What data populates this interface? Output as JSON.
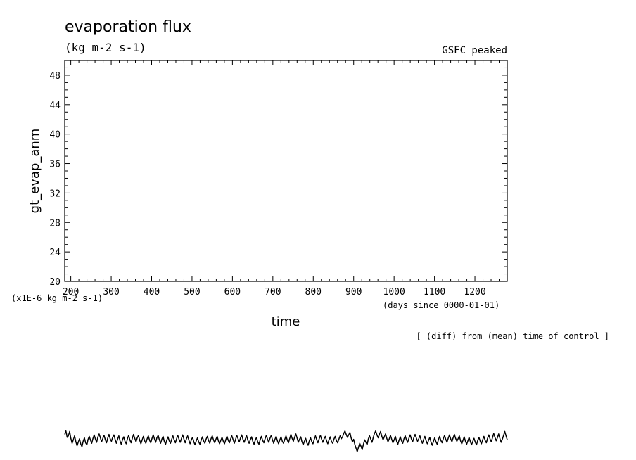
{
  "chart_data": {
    "type": "line",
    "title": "evaporation flux",
    "units": "(kg m-2 s-1)",
    "experiment": "GSFC_peaked",
    "xlabel": "time",
    "x_units": "(days since 0000-01-01)",
    "ylabel": "gt_evap_anm",
    "y_scale_note": "(x1E-6 kg m-2 s-1)",
    "footnote": "[ (diff) from (mean) time of control ]",
    "xlim": [
      185,
      1280
    ],
    "ylim": [
      20,
      50
    ],
    "x_ticks": [
      200,
      300,
      400,
      500,
      600,
      700,
      800,
      900,
      1000,
      1100,
      1200
    ],
    "y_ticks": [
      20,
      24,
      28,
      32,
      36,
      40,
      44,
      48
    ],
    "series": [
      {
        "x_start": 185,
        "x_end": 1280,
        "values": [
          1.2,
          1.9,
          0.6,
          0.9,
          1.8,
          0.4,
          -0.6,
          0.1,
          0.9,
          -0.2,
          -1.1,
          -0.4,
          0.3,
          -0.7,
          -1.3,
          -0.2,
          0.5,
          -0.5,
          -0.9,
          0.2,
          0.8,
          0.0,
          -0.6,
          0.4,
          1.1,
          0.2,
          -0.4,
          0.7,
          1.3,
          0.5,
          -0.3,
          0.4,
          1.0,
          0.1,
          -0.5,
          0.5,
          1.2,
          0.3,
          -0.2,
          0.6,
          1.1,
          0.2,
          -0.6,
          0.2,
          0.9,
          -0.1,
          -0.8,
          0.1,
          0.7,
          -0.2,
          -0.7,
          0.3,
          1.0,
          0.1,
          -0.5,
          0.4,
          1.2,
          0.4,
          -0.3,
          0.5,
          1.0,
          0.0,
          -0.7,
          0.1,
          0.8,
          -0.1,
          -0.6,
          0.3,
          0.9,
          0.0,
          -0.5,
          0.4,
          1.1,
          0.3,
          -0.4,
          0.5,
          1.0,
          0.1,
          -0.6,
          0.2,
          0.8,
          -0.2,
          -0.8,
          0.0,
          0.7,
          -0.1,
          -0.6,
          0.2,
          0.9,
          0.1,
          -0.5,
          0.3,
          1.0,
          0.2,
          -0.4,
          0.4,
          1.1,
          0.2,
          -0.5,
          0.3,
          0.9,
          0.0,
          -0.7,
          0.1,
          0.6,
          -0.3,
          -0.9,
          -0.1,
          0.5,
          -0.3,
          -0.8,
          0.0,
          0.7,
          -0.1,
          -0.6,
          0.2,
          0.8,
          0.0,
          -0.6,
          0.3,
          0.9,
          0.1,
          -0.5,
          0.2,
          0.8,
          -0.1,
          -0.7,
          0.0,
          0.6,
          -0.2,
          -0.7,
          0.1,
          0.8,
          0.0,
          -0.5,
          0.3,
          0.9,
          0.1,
          -0.6,
          0.2,
          1.0,
          0.3,
          -0.3,
          0.5,
          1.1,
          0.2,
          -0.4,
          0.3,
          0.9,
          0.0,
          -0.6,
          0.1,
          0.7,
          -0.2,
          -0.8,
          0.0,
          0.6,
          -0.3,
          -0.8,
          0.1,
          0.8,
          0.0,
          -0.5,
          0.3,
          1.0,
          0.2,
          -0.4,
          0.4,
          1.0,
          0.1,
          -0.6,
          0.2,
          0.8,
          -0.1,
          -0.7,
          0.1,
          0.7,
          -0.2,
          -0.6,
          0.2,
          0.9,
          0.1,
          -0.5,
          0.3,
          1.2,
          0.4,
          -0.2,
          0.6,
          1.3,
          0.5,
          -0.4,
          0.2,
          0.7,
          -0.3,
          -0.9,
          -0.2,
          0.4,
          -0.5,
          -1.0,
          -0.1,
          0.5,
          -0.3,
          -0.7,
          0.2,
          0.9,
          0.1,
          -0.5,
          0.3,
          1.0,
          0.2,
          -0.4,
          0.3,
          0.8,
          -0.1,
          -0.7,
          0.1,
          0.7,
          -0.2,
          -0.6,
          0.2,
          0.8,
          0.0,
          -0.5,
          0.2,
          0.9,
          0.3,
          0.7,
          1.4,
          1.9,
          1.2,
          0.6,
          1.1,
          1.6,
          0.5,
          -0.3,
          0.2,
          -0.8,
          -1.6,
          -2.3,
          -1.4,
          -0.6,
          -1.2,
          -1.9,
          -0.8,
          0.1,
          -0.4,
          -0.9,
          0.3,
          0.9,
          0.2,
          -0.4,
          0.6,
          1.4,
          1.9,
          1.1,
          0.5,
          1.2,
          1.8,
          0.8,
          0.1,
          0.7,
          1.3,
          0.4,
          -0.3,
          0.3,
          1.0,
          0.2,
          -0.5,
          0.1,
          0.8,
          -0.2,
          -0.8,
          0.0,
          0.7,
          -0.1,
          -0.6,
          0.3,
          0.9,
          0.1,
          -0.4,
          0.4,
          1.1,
          0.3,
          -0.3,
          0.5,
          1.2,
          0.5,
          -0.2,
          0.3,
          0.9,
          0.0,
          -0.6,
          0.2,
          0.8,
          -0.1,
          -0.7,
          0.0,
          0.6,
          -0.4,
          -1.0,
          -0.2,
          0.5,
          -0.3,
          -0.8,
          0.1,
          0.8,
          0.0,
          -0.5,
          0.3,
          1.0,
          0.2,
          -0.4,
          0.4,
          1.1,
          0.3,
          -0.3,
          0.5,
          1.2,
          0.4,
          -0.2,
          0.3,
          0.9,
          -0.1,
          -0.7,
          0.0,
          0.7,
          -0.2,
          -0.8,
          -0.1,
          0.6,
          -0.3,
          -0.9,
          -0.2,
          0.4,
          -0.4,
          -0.9,
          0.0,
          0.6,
          -0.2,
          -0.7,
          0.1,
          0.8,
          0.0,
          -0.5,
          0.4,
          1.1,
          0.3,
          -0.3,
          0.5,
          1.4,
          0.6,
          -0.1,
          0.5,
          1.3,
          0.4,
          -0.4,
          0.2,
          1.0,
          1.8,
          0.9,
          0.1
        ]
      }
    ]
  }
}
